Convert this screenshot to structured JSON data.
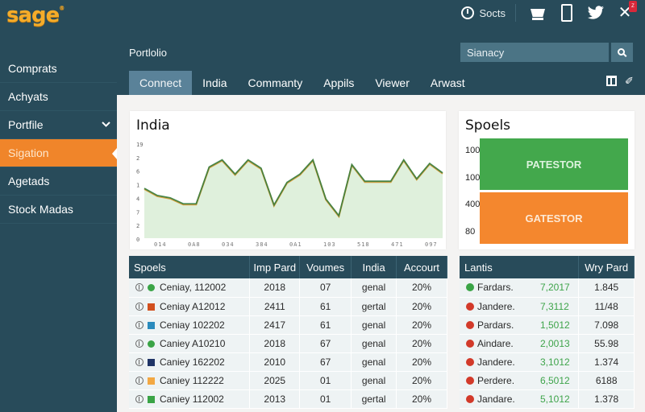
{
  "app": {
    "logo": "sage",
    "logo_mark": "®"
  },
  "topbar": {
    "clock_label": "Socts",
    "icons": [
      "clock-icon",
      "cart-icon",
      "phone-icon",
      "twitter-bird-icon",
      "close-icon"
    ],
    "close_glyph": "✕",
    "bird_glyph": "🐦",
    "notification_badge": "Z"
  },
  "sidebar": {
    "items": [
      {
        "label": "Comprats",
        "active": false
      },
      {
        "label": "Achyats",
        "active": false
      },
      {
        "label": "Portfile",
        "active": false,
        "expandable": true,
        "chevron": "⌄"
      },
      {
        "label": "Sigation",
        "active": true
      },
      {
        "label": "Agetads",
        "active": false
      },
      {
        "label": "Stock Madas",
        "active": false
      }
    ]
  },
  "header": {
    "breadcrumb": "Portlolio",
    "search": {
      "value": "Sianacy",
      "placeholder": "Sianacy"
    }
  },
  "tabs": [
    {
      "label": "Connect",
      "active": true
    },
    {
      "label": "India",
      "active": false
    },
    {
      "label": "Commanty",
      "active": false
    },
    {
      "label": "Appils",
      "active": false
    },
    {
      "label": "Viewer",
      "active": false
    },
    {
      "label": "Arwast",
      "active": false
    }
  ],
  "tab_tools": {
    "pin_glyph": "✐"
  },
  "colors": {
    "brand_orange": "#f0852a",
    "logo_yellow": "#f4ac2a",
    "sidebar_bg": "#284b5a",
    "green": "#43a84c",
    "line_green": "#2f7a3c",
    "line_orange": "#d8a040",
    "area_fill": "#dff0dc"
  },
  "chart_card": {
    "title": "India"
  },
  "block_card": {
    "title": "Spoels",
    "y_labels": [
      "100",
      "100",
      "400",
      "80"
    ],
    "blocks": [
      {
        "label": "PATESTOR",
        "color": "#43a84c"
      },
      {
        "label": "GATESTOR",
        "color": "#f4872e"
      }
    ]
  },
  "chart_data": {
    "type": "area",
    "title": "India",
    "xlabel": "",
    "ylabel": "",
    "y_tick_labels": [
      "19",
      "2",
      "6",
      "1",
      "4",
      "7",
      "2",
      "0"
    ],
    "x_tick_labels": [
      "014",
      "0A8",
      "034",
      "384",
      "0A1",
      "103",
      "518",
      "471",
      "097"
    ],
    "grid": false,
    "legend": null,
    "series": [
      {
        "name": "green",
        "color": "#2f7a3c",
        "values": [
          4.2,
          3.6,
          3.4,
          2.9,
          2.9,
          6.0,
          6.6,
          5.4,
          6.6,
          5.9,
          2.8,
          4.7,
          5.4,
          6.6,
          3.3,
          1.9,
          6.2,
          4.8,
          4.8,
          4.8,
          6.6,
          5.0,
          6.3,
          5.5
        ]
      },
      {
        "name": "orange",
        "color": "#d8a040",
        "values": [
          4.2,
          3.6,
          3.4,
          2.9,
          2.9,
          6.0,
          6.6,
          5.4,
          6.6,
          5.9,
          2.8,
          4.7,
          5.4,
          6.6,
          3.3,
          1.9,
          6.2,
          4.8,
          4.8,
          4.8,
          6.6,
          5.0,
          6.3,
          5.5
        ]
      }
    ],
    "ylim": [
      0,
      8
    ]
  },
  "table_main": {
    "headers": [
      "Spoels",
      "Imp Pard",
      "Voumes",
      "India",
      "Accourt"
    ],
    "rows": [
      {
        "chip_color": "#3aa446",
        "chip_shape": "round",
        "name": "Ceniay, 112002",
        "imp": "2018",
        "vol": "07",
        "india": "genal",
        "acct": "20%"
      },
      {
        "chip_color": "#d2501e",
        "chip_shape": "square",
        "name": "Ceniay A12012",
        "imp": "2411",
        "vol": "61",
        "india": "gertal",
        "acct": "20%"
      },
      {
        "chip_color": "#2a8bbd",
        "chip_shape": "square",
        "name": "Ceniay 102202",
        "imp": "2417",
        "vol": "61",
        "india": "genal",
        "acct": "20%"
      },
      {
        "chip_color": "#3aa446",
        "chip_shape": "round",
        "name": "Caniey A10210",
        "imp": "2018",
        "vol": "67",
        "india": "genal",
        "acct": "20%"
      },
      {
        "chip_color": "#1f3466",
        "chip_shape": "square",
        "name": "Caniey 162202",
        "imp": "2010",
        "vol": "67",
        "india": "genal",
        "acct": "20%"
      },
      {
        "chip_color": "#f3a843",
        "chip_shape": "square",
        "name": "Caniey 112222",
        "imp": "2025",
        "vol": "01",
        "india": "genal",
        "acct": "20%"
      },
      {
        "chip_color": "#3aa446",
        "chip_shape": "square",
        "name": "Caniey 112002",
        "imp": "2013",
        "vol": "01",
        "india": "gertal",
        "acct": "20%"
      }
    ]
  },
  "table_side": {
    "headers": [
      "Lantis",
      "Wry Pard"
    ],
    "rows": [
      {
        "status": "up",
        "dot_color": "#3aa446",
        "name": "Fardars.",
        "value": "7,2017",
        "wry": "1.845"
      },
      {
        "status": "down",
        "dot_color": "#d23a2a",
        "name": "Jandere.",
        "value": "7,3112",
        "wry": "11/48"
      },
      {
        "status": "down",
        "dot_color": "#d23a2a",
        "name": "Pardars.",
        "value": "1,5012",
        "wry": "7.098"
      },
      {
        "status": "down",
        "dot_color": "#d23a2a",
        "name": "Aindare.",
        "value": "2,0013",
        "wry": "55.98"
      },
      {
        "status": "down",
        "dot_color": "#d23a2a",
        "name": "Jandere.",
        "value": "3,1012",
        "wry": "1.374"
      },
      {
        "status": "down",
        "dot_color": "#d23a2a",
        "name": "Perdere.",
        "value": "6,5012",
        "wry": "6188"
      },
      {
        "status": "down",
        "dot_color": "#d23a2a",
        "name": "Jandare.",
        "value": "5,1012",
        "wry": "1.378"
      }
    ]
  }
}
